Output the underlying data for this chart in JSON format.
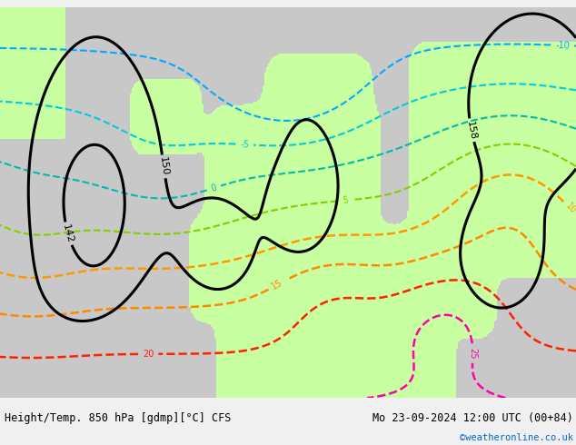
{
  "title_left": "Height/Temp. 850 hPa [gdmp][°C] CFS",
  "title_right": "Mo 23-09-2024 12:00 UTC (00+84)",
  "credit": "©weatheronline.co.uk",
  "credit_color": "#0066cc",
  "bg_color": "#c8c8c8",
  "land_color": "#c8ffa0",
  "ocean_color": "#c8c8c8",
  "footer_bg": "#f0f0f0",
  "footer_fontsize": 8.5
}
